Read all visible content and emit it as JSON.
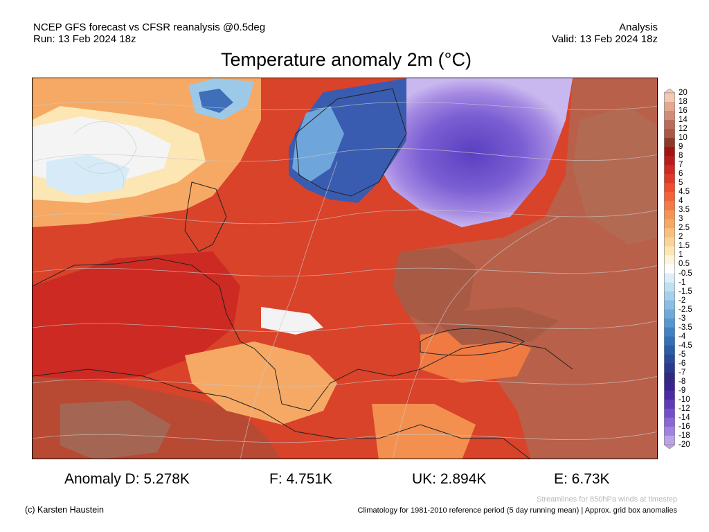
{
  "header": {
    "line1": "NCEP GFS forecast vs CFSR reanalysis @0.5deg",
    "line2": "Run: 13 Feb 2024 18z",
    "right1": "Analysis",
    "right2": "Valid: 13 Feb 2024 18z"
  },
  "title": "Temperature anomaly 2m (°C)",
  "colorbar": {
    "ticks": [
      "20",
      "18",
      "16",
      "14",
      "12",
      "10",
      "9",
      "8",
      "7",
      "6",
      "5",
      "4.5",
      "4",
      "3.5",
      "3",
      "2.5",
      "2",
      "1.5",
      "1",
      "0.5",
      "-0.5",
      "-1",
      "-1.5",
      "-2",
      "-2.5",
      "-3",
      "-3.5",
      "-4",
      "-4.5",
      "-5",
      "-6",
      "-7",
      "-8",
      "-9",
      "-10",
      "-12",
      "-14",
      "-16",
      "-18",
      "-20"
    ],
    "colors": [
      "#f3c8b4",
      "#e3a792",
      "#cf8d77",
      "#b96c58",
      "#a85a44",
      "#8e3a2b",
      "#a21414",
      "#b81d1d",
      "#cc2a22",
      "#de3a28",
      "#ec4f2f",
      "#f2633a",
      "#f47b45",
      "#f59352",
      "#f6a964",
      "#f8c07d",
      "#fad496",
      "#fce6b4",
      "#fff4d8",
      "#ffffff",
      "#ddeef9",
      "#c1e1f3",
      "#a4d0ec",
      "#88bee3",
      "#6eabda",
      "#5796cf",
      "#4382c2",
      "#3570b5",
      "#2a5ea7",
      "#2a4a9a",
      "#2b3a8d",
      "#2e2b80",
      "#3a2391",
      "#4c2ca6",
      "#5f3bb8",
      "#7350c7",
      "#8a67d5",
      "#a182e0",
      "#bca3ea"
    ]
  },
  "anomalies": [
    {
      "label": "Anomaly D: 5.278K"
    },
    {
      "label": "F: 4.751K"
    },
    {
      "label": "UK: 2.894K"
    },
    {
      "label": "E: 6.73K"
    }
  ],
  "footer": {
    "streamlines": "Streamlines for 850hPa winds at timestep",
    "copyright": "(c) Karsten Haustein",
    "climatology": "Climatology for 1981-2010 reference period (5 day running mean) | Approx. grid box anomalies"
  }
}
